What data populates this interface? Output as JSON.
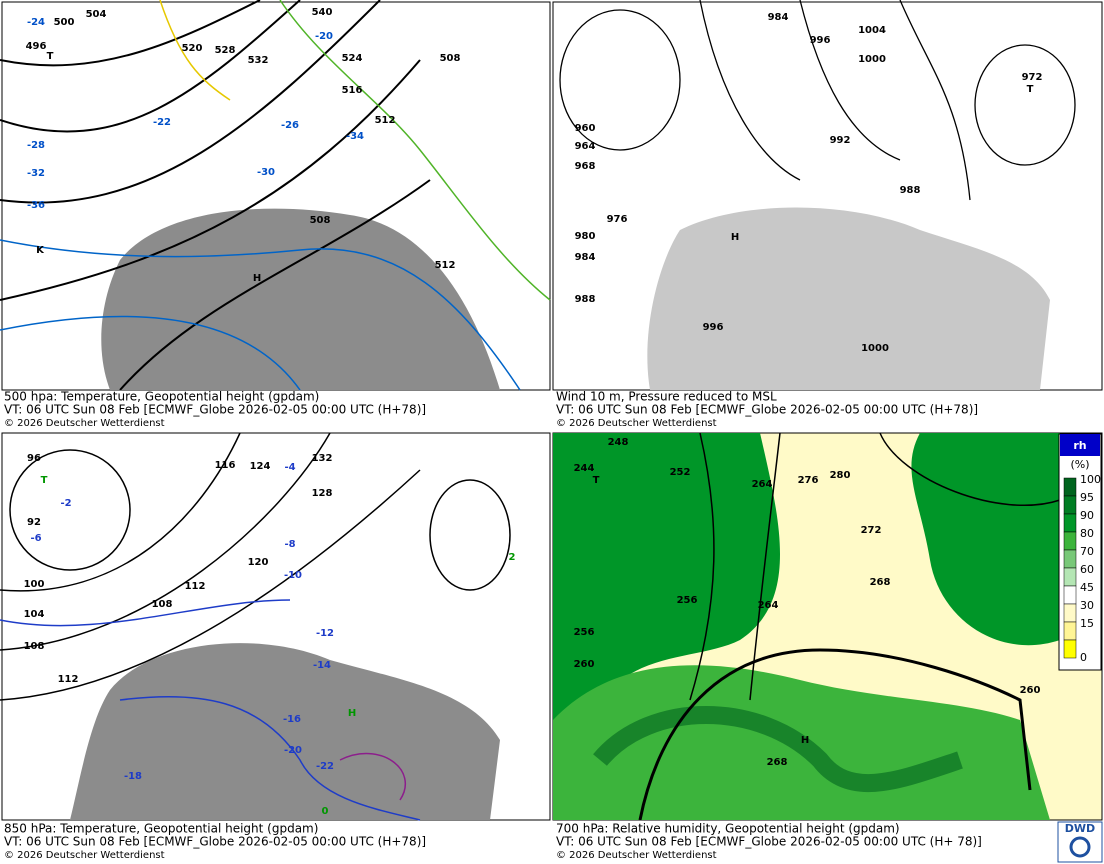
{
  "panels": [
    {
      "caption": [
        "500 hpa: Temperature, Geopotential height (gpdam)",
        "VT: 06 UTC Sun  08 Feb [ECMWF_Globe 2026-02-05 00:00 UTC  (H+78)]",
        "© 2026 Deutscher Wetterdienst"
      ],
      "labels": [
        "500",
        "504",
        "508",
        "512",
        "520",
        "528",
        "532",
        "540",
        "524",
        "516",
        "508",
        "512",
        "496",
        "-24",
        "-28",
        "-32",
        "-36",
        "-30",
        "-34",
        "-26",
        "-20",
        "-22",
        "T",
        "H",
        "K"
      ]
    },
    {
      "caption": [
        "Wind 10 m, Pressure reduced to MSL",
        "VT: 06 UTC Sun  08 Feb [ECMWF_Globe 2026-02-05 00:00 UTC  (H+78)]",
        "© 2026 Deutscher Wetterdienst"
      ],
      "labels": [
        "984",
        "996",
        "1004",
        "1000",
        "992",
        "980",
        "972",
        "976",
        "960",
        "964",
        "968",
        "988",
        "984",
        "988",
        "996",
        "1000",
        "T",
        "H"
      ]
    },
    {
      "caption": [
        "850 hPa:  Temperature, Geopotential height (gpdam)",
        "VT: 06 UTC Sun  08 Feb [ECMWF_Globe 2026-02-05 00:00 UTC  (H+78)]",
        "© 2026 Deutscher Wetterdienst"
      ],
      "labels": [
        "96",
        "92",
        "100",
        "104",
        "108",
        "112",
        "116",
        "120",
        "124",
        "128",
        "132",
        "108",
        "112",
        "-2",
        "-4",
        "-6",
        "-8",
        "-10",
        "-12",
        "-14",
        "-16",
        "-18",
        "-20",
        "-22",
        "0",
        "2",
        "T",
        "H"
      ]
    },
    {
      "caption": [
        "700 hPa:  Relative humidity, Geopotential height (gpdam)",
        "VT: 06 UTC Sun  08 Feb [ECMWF_Globe  2026-02-05 00:00 UTC  (H+ 78)]",
        "© 2026 Deutscher Wetterdienst"
      ],
      "labels": [
        "248",
        "244",
        "252",
        "256",
        "260",
        "264",
        "268",
        "272",
        "276",
        "280",
        "256",
        "264",
        "268",
        "260",
        "T",
        "H"
      ],
      "legend": {
        "title": "rh",
        "unit": "(%)",
        "levels": [
          {
            "value": "100",
            "color": "#00641e"
          },
          {
            "value": "95",
            "color": "#007d23"
          },
          {
            "value": "90",
            "color": "#009628"
          },
          {
            "value": "80",
            "color": "#3cb43c"
          },
          {
            "value": "70",
            "color": "#78c878"
          },
          {
            "value": "60",
            "color": "#b4e6b4"
          },
          {
            "value": "45",
            "color": "#ffffff"
          },
          {
            "value": "30",
            "color": "#fffac8"
          },
          {
            "value": "15",
            "color": "#fff596"
          },
          {
            "value": "0",
            "color": "#ffff00"
          }
        ]
      },
      "logo": "DWD"
    }
  ]
}
